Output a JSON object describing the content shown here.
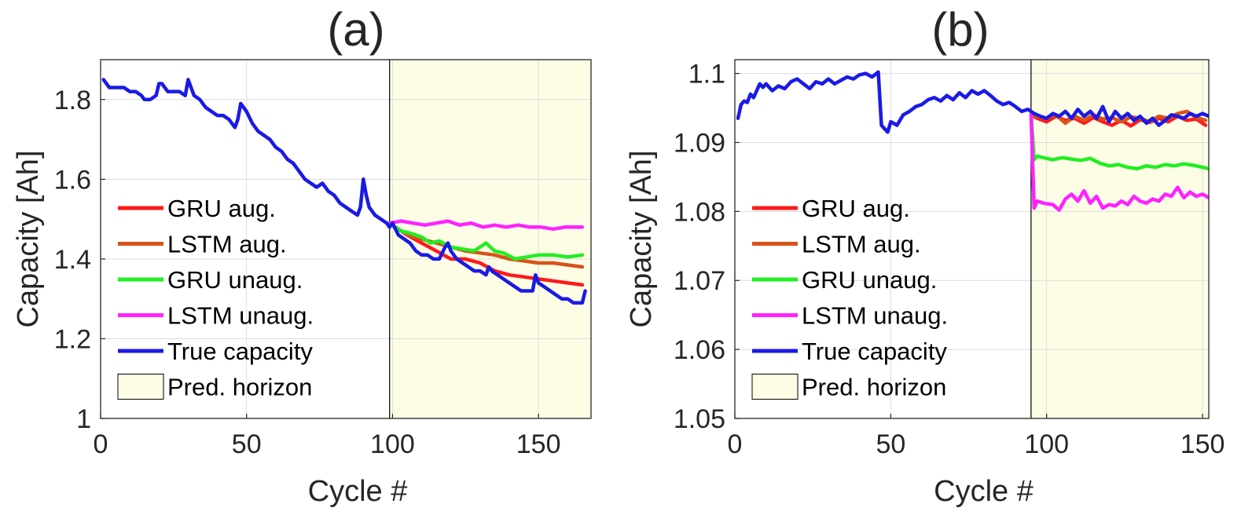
{
  "chart_data": [
    {
      "type": "line",
      "title": "(a)",
      "xlabel": "Cycle #",
      "ylabel": "Capacity [Ah]",
      "xlim": [
        0,
        168
      ],
      "ylim": [
        1.0,
        1.9
      ],
      "xticks": [
        0,
        50,
        100,
        150
      ],
      "yticks": [
        1.0,
        1.2,
        1.4,
        1.6,
        1.8
      ],
      "xtick_labels": [
        "0",
        "50",
        "100",
        "150"
      ],
      "ytick_labels": [
        "1",
        "1.2",
        "1.4",
        "1.6",
        "1.8"
      ],
      "grid": true,
      "legend_position": "left",
      "prediction_horizon": {
        "label": "Pred. horizon",
        "start": 99,
        "end": 168,
        "color": "#fdfde6"
      },
      "series": [
        {
          "name": "GRU aug.",
          "color": "#ff1a1a",
          "x": [
            99,
            105,
            110,
            115,
            120,
            125,
            130,
            135,
            140,
            145,
            150,
            155,
            160,
            165
          ],
          "y": [
            1.49,
            1.46,
            1.44,
            1.42,
            1.4,
            1.4,
            1.39,
            1.37,
            1.36,
            1.355,
            1.35,
            1.345,
            1.34,
            1.335
          ]
        },
        {
          "name": "LSTM aug.",
          "color": "#d95319",
          "x": [
            99,
            105,
            110,
            115,
            120,
            125,
            130,
            135,
            140,
            145,
            150,
            155,
            160,
            165
          ],
          "y": [
            1.49,
            1.46,
            1.45,
            1.44,
            1.43,
            1.42,
            1.415,
            1.41,
            1.4,
            1.395,
            1.39,
            1.39,
            1.385,
            1.38
          ]
        },
        {
          "name": "GRU unaug.",
          "color": "#22ee22",
          "x": [
            99,
            103,
            106,
            110,
            113,
            116,
            120,
            124,
            128,
            132,
            135,
            138,
            142,
            146,
            150,
            155,
            160,
            165
          ],
          "y": [
            1.49,
            1.47,
            1.465,
            1.455,
            1.44,
            1.445,
            1.43,
            1.425,
            1.42,
            1.44,
            1.42,
            1.415,
            1.4,
            1.405,
            1.41,
            1.41,
            1.405,
            1.41
          ]
        },
        {
          "name": "LSTM unaug.",
          "color": "#ff22ff",
          "x": [
            99,
            103,
            107,
            111,
            115,
            119,
            123,
            127,
            131,
            135,
            139,
            143,
            147,
            151,
            155,
            159,
            163,
            165
          ],
          "y": [
            1.49,
            1.495,
            1.49,
            1.485,
            1.49,
            1.495,
            1.485,
            1.49,
            1.48,
            1.485,
            1.48,
            1.485,
            1.48,
            1.48,
            1.475,
            1.48,
            1.48,
            1.48
          ]
        },
        {
          "name": "True capacity",
          "color": "#1a1ae6",
          "x": [
            1,
            3,
            5,
            8,
            10,
            12,
            14,
            15,
            17,
            19,
            20,
            21,
            23,
            25,
            27,
            29,
            30,
            31,
            32,
            34,
            36,
            38,
            40,
            42,
            44,
            46,
            47,
            48,
            50,
            52,
            54,
            56,
            58,
            60,
            62,
            64,
            66,
            68,
            70,
            72,
            74,
            76,
            78,
            80,
            82,
            84,
            86,
            88,
            89,
            90,
            91,
            92,
            94,
            96,
            98,
            99,
            100,
            102,
            104,
            106,
            108,
            110,
            112,
            114,
            116,
            118,
            119,
            120,
            122,
            124,
            126,
            128,
            130,
            132,
            133,
            134,
            136,
            138,
            140,
            142,
            144,
            146,
            148,
            149,
            150,
            152,
            154,
            156,
            158,
            160,
            162,
            164,
            165,
            166
          ],
          "y": [
            1.85,
            1.83,
            1.83,
            1.83,
            1.82,
            1.82,
            1.81,
            1.8,
            1.8,
            1.81,
            1.84,
            1.84,
            1.82,
            1.82,
            1.82,
            1.81,
            1.85,
            1.83,
            1.81,
            1.8,
            1.78,
            1.77,
            1.76,
            1.76,
            1.75,
            1.73,
            1.75,
            1.79,
            1.77,
            1.74,
            1.72,
            1.71,
            1.7,
            1.68,
            1.67,
            1.65,
            1.64,
            1.62,
            1.6,
            1.59,
            1.58,
            1.59,
            1.57,
            1.56,
            1.54,
            1.53,
            1.52,
            1.51,
            1.53,
            1.6,
            1.56,
            1.53,
            1.51,
            1.5,
            1.49,
            1.48,
            1.49,
            1.46,
            1.45,
            1.44,
            1.42,
            1.41,
            1.41,
            1.4,
            1.4,
            1.43,
            1.44,
            1.42,
            1.4,
            1.39,
            1.38,
            1.37,
            1.37,
            1.36,
            1.38,
            1.37,
            1.36,
            1.35,
            1.34,
            1.33,
            1.32,
            1.32,
            1.32,
            1.36,
            1.34,
            1.33,
            1.32,
            1.31,
            1.3,
            1.3,
            1.29,
            1.29,
            1.29,
            1.32
          ]
        }
      ]
    },
    {
      "type": "line",
      "title": "(b)",
      "xlabel": "Cycle #",
      "ylabel": "Capacity [Ah]",
      "xlim": [
        0,
        152
      ],
      "ylim": [
        1.05,
        1.102
      ],
      "xticks": [
        0,
        50,
        100,
        150
      ],
      "yticks": [
        1.05,
        1.06,
        1.07,
        1.08,
        1.09,
        1.1
      ],
      "xtick_labels": [
        "0",
        "50",
        "100",
        "150"
      ],
      "ytick_labels": [
        "1.05",
        "1.06",
        "1.07",
        "1.08",
        "1.09",
        "1.1"
      ],
      "grid": true,
      "legend_position": "left",
      "prediction_horizon": {
        "label": "Pred. horizon",
        "start": 95,
        "end": 152,
        "color": "#fdfde6"
      },
      "series": [
        {
          "name": "GRU aug.",
          "color": "#ff1a1a",
          "x": [
            95,
            97,
            100,
            103,
            106,
            109,
            112,
            115,
            118,
            121,
            124,
            127,
            130,
            133,
            136,
            139,
            142,
            145,
            148,
            151
          ],
          "y": [
            1.094,
            1.0935,
            1.093,
            1.0938,
            1.0932,
            1.0935,
            1.0928,
            1.0936,
            1.093,
            1.0925,
            1.0932,
            1.0924,
            1.0933,
            1.0929,
            1.0935,
            1.093,
            1.0938,
            1.0932,
            1.0934,
            1.0925
          ]
        },
        {
          "name": "LSTM aug.",
          "color": "#d95319",
          "x": [
            95,
            97,
            100,
            103,
            106,
            109,
            112,
            115,
            118,
            121,
            124,
            127,
            130,
            133,
            136,
            139,
            142,
            145,
            148,
            151
          ],
          "y": [
            1.094,
            1.0938,
            1.0935,
            1.094,
            1.0928,
            1.0938,
            1.0932,
            1.094,
            1.0934,
            1.0936,
            1.093,
            1.0937,
            1.0935,
            1.093,
            1.0938,
            1.0935,
            1.0942,
            1.0945,
            1.0936,
            1.0932
          ]
        },
        {
          "name": "GRU unaug.",
          "color": "#22ee22",
          "x": [
            95,
            96,
            97,
            99,
            102,
            105,
            108,
            111,
            114,
            117,
            120,
            123,
            126,
            129,
            132,
            135,
            138,
            141,
            144,
            147,
            150,
            152
          ],
          "y": [
            1.094,
            1.0875,
            1.088,
            1.0878,
            1.0875,
            1.0878,
            1.0876,
            1.0874,
            1.0877,
            1.087,
            1.0866,
            1.0868,
            1.0864,
            1.0862,
            1.0866,
            1.0864,
            1.0868,
            1.0866,
            1.0869,
            1.0867,
            1.0864,
            1.0862
          ]
        },
        {
          "name": "LSTM unaug.",
          "color": "#ff22ff",
          "x": [
            95,
            96,
            97,
            99,
            102,
            104,
            106,
            108,
            110,
            112,
            114,
            116,
            118,
            120,
            122,
            124,
            126,
            128,
            130,
            132,
            134,
            136,
            138,
            140,
            142,
            144,
            146,
            148,
            150,
            152
          ],
          "y": [
            1.094,
            1.0805,
            1.0815,
            1.0812,
            1.081,
            1.0802,
            1.0818,
            1.0825,
            1.0815,
            1.083,
            1.0812,
            1.0822,
            1.0805,
            1.081,
            1.0808,
            1.0815,
            1.081,
            1.0822,
            1.0815,
            1.0812,
            1.0818,
            1.0815,
            1.0825,
            1.0822,
            1.0835,
            1.082,
            1.0828,
            1.0822,
            1.0825,
            1.082
          ]
        },
        {
          "name": "True capacity",
          "color": "#1a1ae6",
          "x": [
            1,
            2,
            3,
            4,
            5,
            6,
            7,
            8,
            9,
            10,
            12,
            14,
            16,
            18,
            20,
            22,
            24,
            26,
            28,
            30,
            32,
            34,
            36,
            38,
            40,
            42,
            44,
            46,
            47,
            48,
            49,
            50,
            52,
            54,
            56,
            58,
            60,
            62,
            64,
            66,
            68,
            70,
            72,
            74,
            76,
            78,
            80,
            82,
            84,
            86,
            88,
            90,
            92,
            94,
            96,
            98,
            100,
            102,
            104,
            106,
            108,
            110,
            112,
            114,
            116,
            118,
            120,
            122,
            124,
            126,
            128,
            130,
            132,
            134,
            136,
            138,
            140,
            142,
            144,
            146,
            148,
            150,
            152
          ],
          "y": [
            1.0935,
            1.0955,
            1.096,
            1.0958,
            1.097,
            1.0965,
            1.0975,
            1.0985,
            1.098,
            1.0985,
            1.0975,
            1.0982,
            1.0978,
            1.0988,
            1.0992,
            1.0985,
            1.0978,
            1.0988,
            1.0985,
            1.0992,
            1.0985,
            1.099,
            1.0995,
            1.0992,
            1.0998,
            1.1,
            1.0995,
            1.1002,
            1.0925,
            1.092,
            1.0915,
            1.093,
            1.0925,
            1.094,
            1.0945,
            1.0952,
            1.0955,
            1.0962,
            1.0965,
            1.096,
            1.0968,
            1.0962,
            1.0972,
            1.0965,
            1.0975,
            1.097,
            1.0975,
            1.0968,
            1.096,
            1.0955,
            1.0958,
            1.0952,
            1.0945,
            1.0948,
            1.0942,
            1.0938,
            1.0935,
            1.0942,
            1.0938,
            1.0945,
            1.0935,
            1.0948,
            1.0938,
            1.0945,
            1.0935,
            1.0952,
            1.093,
            1.0945,
            1.0935,
            1.0942,
            1.0932,
            1.0938,
            1.0928,
            1.0935,
            1.0925,
            1.0932,
            1.094,
            1.0938,
            1.0935,
            1.0942,
            1.0938,
            1.0942,
            1.0938
          ]
        }
      ]
    }
  ]
}
